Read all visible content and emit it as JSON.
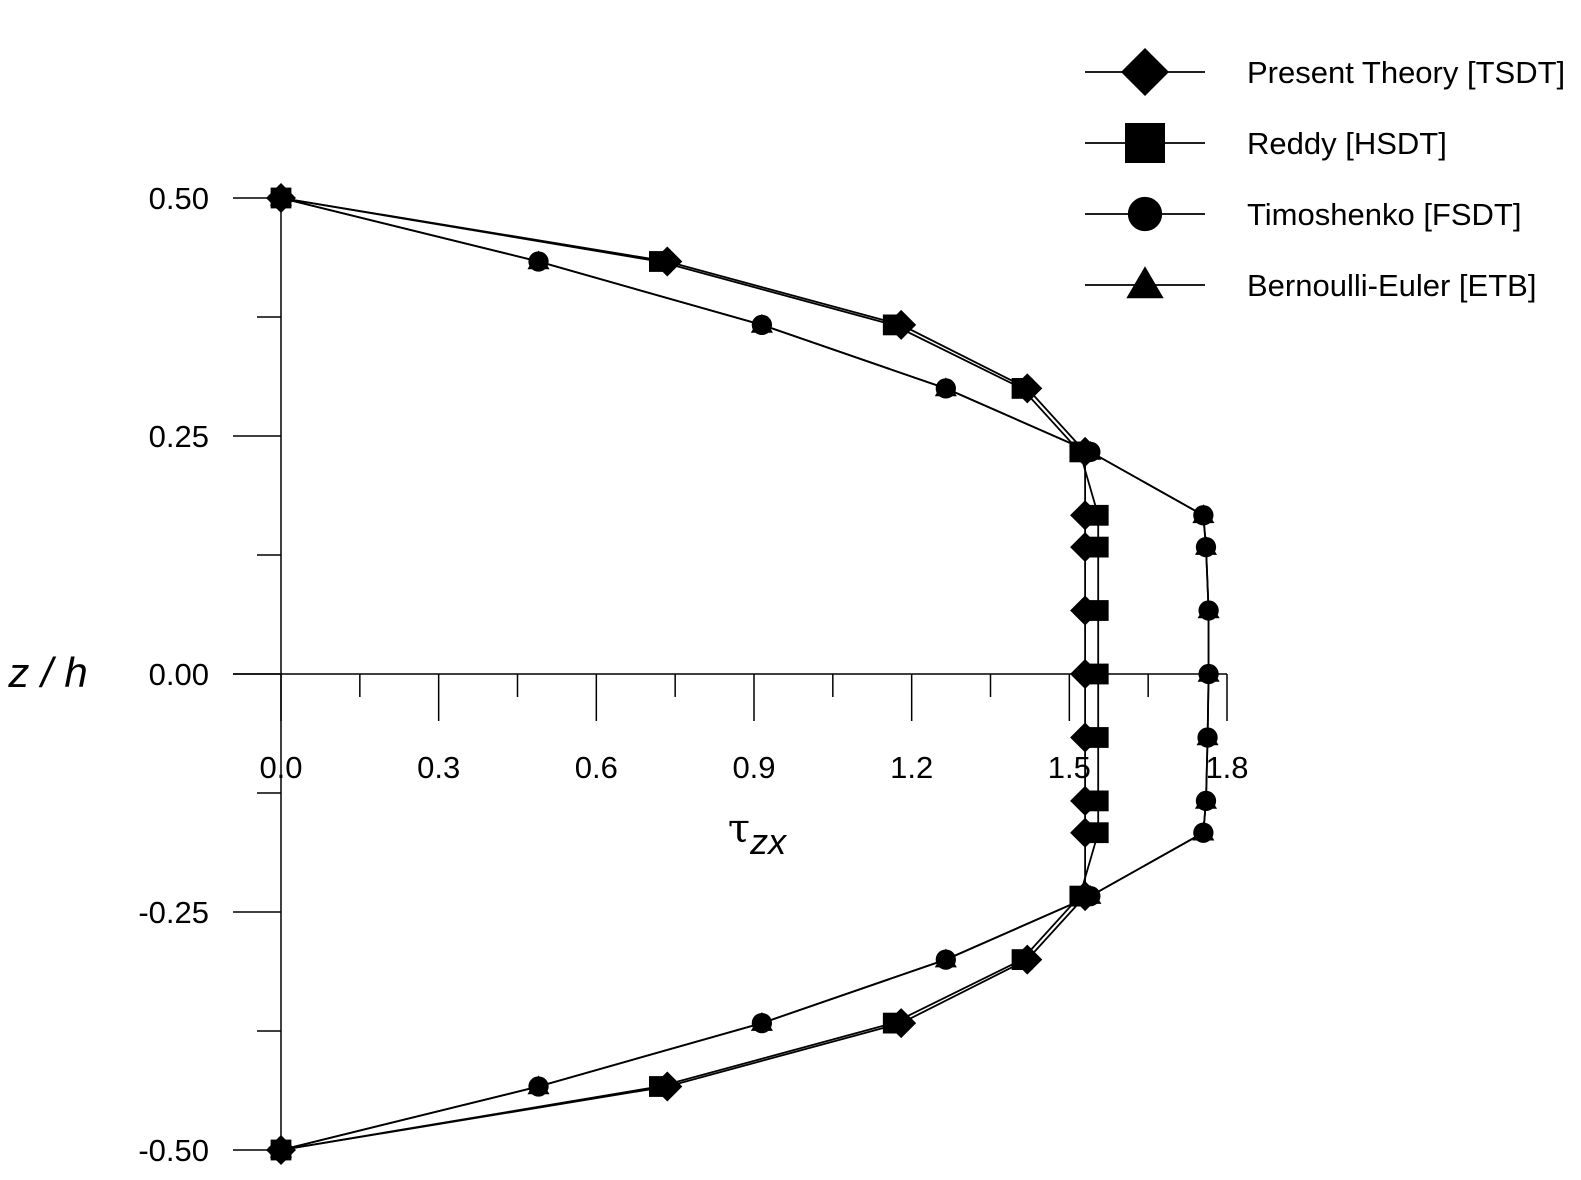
{
  "chart_data": {
    "type": "line",
    "xlabel": "τzx",
    "ylabel": "z / h",
    "xlim": [
      0,
      1.8
    ],
    "ylim": [
      -0.5,
      0.5
    ],
    "x_ticks": [
      "0.0",
      "0.3",
      "0.6",
      "0.9",
      "1.2",
      "1.5",
      "1.8"
    ],
    "y_ticks": [
      "0.50",
      "0.25",
      "0.00",
      "-0.25",
      "-0.50"
    ],
    "legend_position": "top-right",
    "series": [
      {
        "name": "Present Theory [TSDT]",
        "marker": "diamond",
        "points": [
          [
            0.0,
            0.5
          ],
          [
            0.735,
            0.4333
          ],
          [
            1.18,
            0.3667
          ],
          [
            1.42,
            0.3
          ],
          [
            1.53,
            0.2333
          ],
          [
            1.53,
            0.1667
          ],
          [
            1.53,
            0.1333
          ],
          [
            1.53,
            0.0667
          ],
          [
            1.53,
            0.0
          ],
          [
            1.53,
            -0.0667
          ],
          [
            1.53,
            -0.1333
          ],
          [
            1.53,
            -0.1667
          ],
          [
            1.53,
            -0.2333
          ],
          [
            1.42,
            -0.3
          ],
          [
            1.18,
            -0.3667
          ],
          [
            0.735,
            -0.4333
          ],
          [
            0.0,
            -0.5
          ]
        ]
      },
      {
        "name": "Reddy [HSDT]",
        "marker": "square",
        "points": [
          [
            0.0,
            0.5
          ],
          [
            0.72,
            0.4333
          ],
          [
            1.165,
            0.3667
          ],
          [
            1.41,
            0.3
          ],
          [
            1.52,
            0.2333
          ],
          [
            1.555,
            0.1667
          ],
          [
            1.555,
            0.1333
          ],
          [
            1.555,
            0.0667
          ],
          [
            1.555,
            0.0
          ],
          [
            1.555,
            -0.0667
          ],
          [
            1.555,
            -0.1333
          ],
          [
            1.555,
            -0.1667
          ],
          [
            1.52,
            -0.2333
          ],
          [
            1.41,
            -0.3
          ],
          [
            1.165,
            -0.3667
          ],
          [
            0.72,
            -0.4333
          ],
          [
            0.0,
            -0.5
          ]
        ]
      },
      {
        "name": "Timoshenko [FSDT]",
        "marker": "circle",
        "points": [
          [
            0.0,
            0.5
          ],
          [
            0.49,
            0.4333
          ],
          [
            0.915,
            0.3667
          ],
          [
            1.265,
            0.3
          ],
          [
            1.54,
            0.2333
          ],
          [
            1.755,
            0.1667
          ],
          [
            1.76,
            0.1333
          ],
          [
            1.765,
            0.0667
          ],
          [
            1.765,
            0.0
          ],
          [
            1.763,
            -0.0667
          ],
          [
            1.76,
            -0.1333
          ],
          [
            1.755,
            -0.1667
          ],
          [
            1.54,
            -0.2333
          ],
          [
            1.265,
            -0.3
          ],
          [
            0.915,
            -0.3667
          ],
          [
            0.49,
            -0.4333
          ],
          [
            0.0,
            -0.5
          ]
        ]
      },
      {
        "name": "Bernoulli-Euler [ETB]",
        "marker": "triangle",
        "points": [
          [
            0.0,
            0.5
          ],
          [
            0.49,
            0.4333
          ],
          [
            0.915,
            0.3667
          ],
          [
            1.265,
            0.3
          ],
          [
            1.54,
            0.2333
          ],
          [
            1.755,
            0.1667
          ],
          [
            1.76,
            0.1333
          ],
          [
            1.765,
            0.0667
          ],
          [
            1.765,
            0.0
          ],
          [
            1.763,
            -0.0667
          ],
          [
            1.76,
            -0.1333
          ],
          [
            1.755,
            -0.1667
          ],
          [
            1.54,
            -0.2333
          ],
          [
            1.265,
            -0.3
          ],
          [
            0.915,
            -0.3667
          ],
          [
            0.49,
            -0.4333
          ],
          [
            0.0,
            -0.5
          ]
        ]
      }
    ]
  }
}
